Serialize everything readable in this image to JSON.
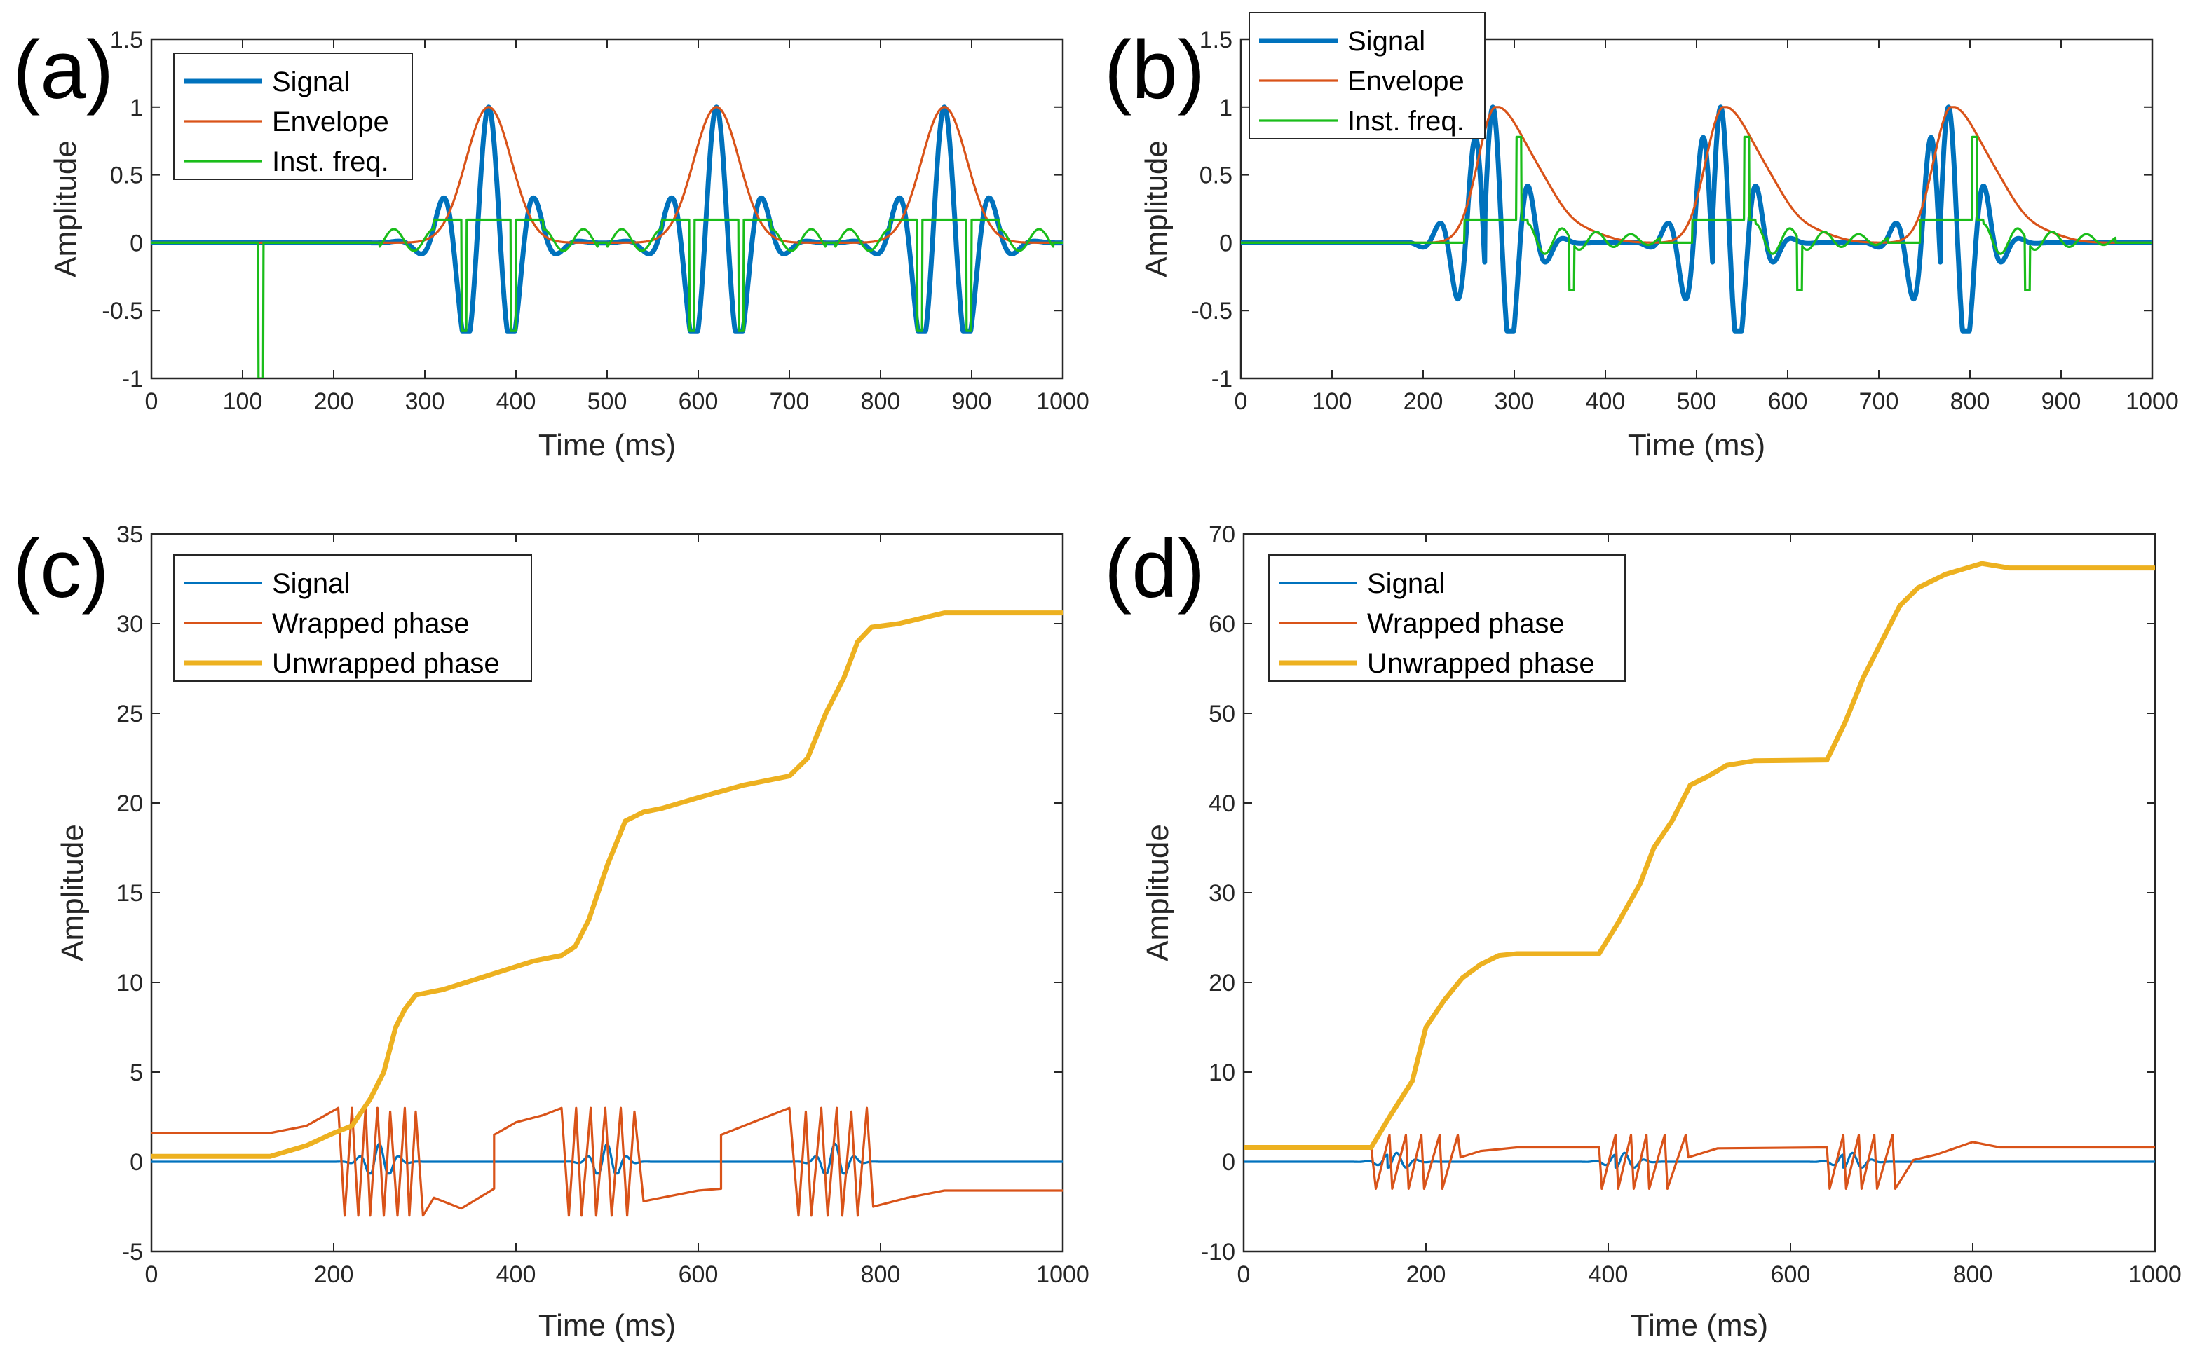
{
  "chart_data": [
    {
      "id": "a",
      "type": "line",
      "panel_label": "(a)",
      "xlabel": "Time (ms)",
      "ylabel": "Amplitude",
      "xlim": [
        0,
        1000
      ],
      "ylim": [
        -1,
        1.5
      ],
      "xticks": [
        0,
        100,
        200,
        300,
        400,
        500,
        600,
        700,
        800,
        900,
        1000
      ],
      "xtick_labels": [
        "0",
        "100",
        "200",
        "300",
        "400",
        "500",
        "600",
        "700",
        "800",
        "900",
        "1000"
      ],
      "yticks": [
        -1,
        -0.5,
        0,
        0.5,
        1,
        1.5
      ],
      "ytick_labels": [
        "-1",
        "-0.5",
        "0",
        "0.5",
        "1",
        "1.5"
      ],
      "legend_position": "top-left",
      "series": [
        {
          "name": "Signal",
          "color": "#0072BD",
          "emphasis": "thick",
          "model": {
            "kind": "wavelet",
            "centers": [
              370,
              620,
              870
            ],
            "cycles_ms": 52,
            "width_ms": 34,
            "sym": true
          }
        },
        {
          "name": "Envelope",
          "color": "#D95319",
          "emphasis": "thin",
          "model": {
            "kind": "envelope",
            "centers": [
              370,
              620,
              870
            ],
            "width_ms": 25,
            "sym": true
          }
        },
        {
          "name": "Inst. freq.",
          "color": "#1ABD1A",
          "emphasis": "thin",
          "model": {
            "kind": "instfreq",
            "centers": [
              370,
              620,
              870
            ],
            "sym": true,
            "spikes": [
              [
                120,
                -1.0
              ],
              [
                343,
                -0.65
              ],
              [
                397,
                -0.65
              ],
              [
                593,
                -0.65
              ],
              [
                647,
                -0.65
              ],
              [
                843,
                -0.65
              ],
              [
                897,
                -0.65
              ]
            ]
          }
        }
      ]
    },
    {
      "id": "b",
      "type": "line",
      "panel_label": "(b)",
      "xlabel": "Time (ms)",
      "ylabel": "Amplitude",
      "xlim": [
        0,
        1000
      ],
      "ylim": [
        -1,
        1.5
      ],
      "xticks": [
        0,
        100,
        200,
        300,
        400,
        500,
        600,
        700,
        800,
        900,
        1000
      ],
      "xtick_labels": [
        "0",
        "100",
        "200",
        "300",
        "400",
        "500",
        "600",
        "700",
        "800",
        "900",
        "1000"
      ],
      "yticks": [
        -1,
        -0.5,
        0,
        0.5,
        1,
        1.5
      ],
      "ytick_labels": [
        "-1",
        "-0.5",
        "0",
        "0.5",
        "1",
        "1.5"
      ],
      "legend_position": "top-left",
      "series": [
        {
          "name": "Signal",
          "color": "#0072BD",
          "emphasis": "thick",
          "model": {
            "kind": "wavelet",
            "centers": [
              280,
              530,
              780
            ],
            "cycles_ms": 40,
            "width_ms": 30,
            "sym": false
          }
        },
        {
          "name": "Envelope",
          "color": "#D95319",
          "emphasis": "thin",
          "model": {
            "kind": "envelope",
            "centers": [
              280,
              530,
              780
            ],
            "width_ms": 22,
            "sym": false
          }
        },
        {
          "name": "Inst. freq.",
          "color": "#1ABD1A",
          "emphasis": "thin",
          "model": {
            "kind": "instfreq",
            "centers": [
              280,
              530,
              780
            ],
            "sym": false,
            "spikes": [
              [
                305,
                0.78
              ],
              [
                363,
                -0.35
              ],
              [
                555,
                0.78
              ],
              [
                613,
                -0.35
              ],
              [
                805,
                0.78
              ],
              [
                863,
                -0.35
              ]
            ]
          }
        }
      ]
    },
    {
      "id": "c",
      "type": "line",
      "panel_label": "(c)",
      "xlabel": "Time (ms)",
      "ylabel": "Amplitude",
      "xlim": [
        0,
        1000
      ],
      "ylim": [
        -5,
        35
      ],
      "xticks": [
        0,
        200,
        400,
        600,
        800,
        1000
      ],
      "xtick_labels": [
        "0",
        "200",
        "400",
        "600",
        "800",
        "1000"
      ],
      "yticks": [
        -5,
        0,
        5,
        10,
        15,
        20,
        25,
        30,
        35
      ],
      "ytick_labels": [
        "-5",
        "0",
        "5",
        "10",
        "15",
        "20",
        "25",
        "30",
        "35"
      ],
      "legend_position": "top-left",
      "series": [
        {
          "name": "Signal",
          "color": "#0072BD",
          "emphasis": "thin",
          "model": {
            "kind": "wavelet",
            "centers": [
              250,
              500,
              750
            ],
            "cycles_ms": 22,
            "width_ms": 14,
            "sym": true
          }
        },
        {
          "name": "Wrapped phase",
          "color": "#D95319",
          "emphasis": "thin",
          "model": {
            "kind": "wrapped",
            "points": [
              [
                0,
                1.6
              ],
              [
                130,
                1.6
              ],
              [
                170,
                2.0
              ],
              [
                205,
                3.0
              ],
              [
                212,
                -3.0
              ],
              [
                220,
                3.0
              ],
              [
                227,
                -3.0
              ],
              [
                235,
                3.0
              ],
              [
                240,
                -3.0
              ],
              [
                248,
                3.0
              ],
              [
                255,
                -3.0
              ],
              [
                262,
                2.8
              ],
              [
                270,
                -3.0
              ],
              [
                278,
                3.0
              ],
              [
                283,
                -3.0
              ],
              [
                290,
                2.8
              ],
              [
                298,
                -3.0
              ],
              [
                310,
                -2.0
              ],
              [
                340,
                -2.6
              ],
              [
                376,
                -1.5
              ],
              [
                376,
                1.5
              ],
              [
                400,
                2.2
              ],
              [
                430,
                2.6
              ],
              [
                450,
                3.0
              ],
              [
                458,
                -3.0
              ],
              [
                466,
                3.0
              ],
              [
                472,
                -3.0
              ],
              [
                482,
                3.0
              ],
              [
                488,
                -3.0
              ],
              [
                498,
                3.0
              ],
              [
                505,
                -3.0
              ],
              [
                515,
                3.0
              ],
              [
                522,
                -3.0
              ],
              [
                530,
                2.8
              ],
              [
                540,
                -2.2
              ],
              [
                560,
                -2.0
              ],
              [
                600,
                -1.6
              ],
              [
                625,
                -1.5
              ],
              [
                625,
                1.5
              ],
              [
                650,
                2.0
              ],
              [
                690,
                2.8
              ],
              [
                700,
                3.0
              ],
              [
                710,
                -3.0
              ],
              [
                718,
                2.8
              ],
              [
                724,
                -3.0
              ],
              [
                735,
                3.0
              ],
              [
                742,
                -3.0
              ],
              [
                752,
                3.0
              ],
              [
                758,
                -3.0
              ],
              [
                768,
                2.8
              ],
              [
                775,
                -3.0
              ],
              [
                785,
                3.0
              ],
              [
                792,
                -2.5
              ],
              [
                830,
                -2.0
              ],
              [
                870,
                -1.6
              ],
              [
                1000,
                -1.6
              ]
            ]
          }
        },
        {
          "name": "Unwrapped phase",
          "color": "#EDB120",
          "emphasis": "thick",
          "model": {
            "kind": "polyline",
            "points": [
              [
                0,
                0.3
              ],
              [
                130,
                0.3
              ],
              [
                170,
                0.9
              ],
              [
                200,
                1.6
              ],
              [
                220,
                2.0
              ],
              [
                240,
                3.5
              ],
              [
                255,
                5.0
              ],
              [
                268,
                7.5
              ],
              [
                278,
                8.5
              ],
              [
                290,
                9.3
              ],
              [
                320,
                9.6
              ],
              [
                370,
                10.4
              ],
              [
                420,
                11.2
              ],
              [
                450,
                11.5
              ],
              [
                465,
                12.0
              ],
              [
                480,
                13.5
              ],
              [
                500,
                16.5
              ],
              [
                520,
                19.0
              ],
              [
                540,
                19.5
              ],
              [
                560,
                19.7
              ],
              [
                600,
                20.3
              ],
              [
                650,
                21.0
              ],
              [
                700,
                21.5
              ],
              [
                720,
                22.5
              ],
              [
                740,
                25.0
              ],
              [
                760,
                27.0
              ],
              [
                775,
                29.0
              ],
              [
                790,
                29.8
              ],
              [
                820,
                30.0
              ],
              [
                870,
                30.6
              ],
              [
                1000,
                30.6
              ]
            ]
          }
        }
      ]
    },
    {
      "id": "d",
      "type": "line",
      "panel_label": "(d)",
      "xlabel": "Time (ms)",
      "ylabel": "Amplitude",
      "xlim": [
        0,
        1000
      ],
      "ylim": [
        -10,
        70
      ],
      "xticks": [
        0,
        200,
        400,
        600,
        800,
        1000
      ],
      "xtick_labels": [
        "0",
        "200",
        "400",
        "600",
        "800",
        "1000"
      ],
      "yticks": [
        -10,
        0,
        10,
        20,
        30,
        40,
        50,
        60,
        70
      ],
      "ytick_labels": [
        "-10",
        "0",
        "10",
        "20",
        "30",
        "40",
        "50",
        "60",
        "70"
      ],
      "legend_position": "top-left",
      "series": [
        {
          "name": "Signal",
          "color": "#0072BD",
          "emphasis": "thin",
          "model": {
            "kind": "wavelet",
            "centers": [
              170,
              420,
              670
            ],
            "cycles_ms": 22,
            "width_ms": 14,
            "sym": false
          }
        },
        {
          "name": "Wrapped phase",
          "color": "#D95319",
          "emphasis": "thin",
          "model": {
            "kind": "wrapped",
            "points": [
              [
                0,
                1.6
              ],
              [
                140,
                1.6
              ],
              [
                145,
                -3.0
              ],
              [
                160,
                3.0
              ],
              [
                163,
                -3.0
              ],
              [
                178,
                3.0
              ],
              [
                181,
                -3.0
              ],
              [
                195,
                3.0
              ],
              [
                198,
                -3.0
              ],
              [
                215,
                3.0
              ],
              [
                218,
                -3.0
              ],
              [
                235,
                3.0
              ],
              [
                238,
                0.5
              ],
              [
                260,
                1.2
              ],
              [
                300,
                1.6
              ],
              [
                390,
                1.6
              ],
              [
                393,
                -3.0
              ],
              [
                408,
                3.0
              ],
              [
                411,
                -3.0
              ],
              [
                425,
                3.0
              ],
              [
                428,
                -3.0
              ],
              [
                442,
                3.0
              ],
              [
                445,
                -3.0
              ],
              [
                462,
                3.0
              ],
              [
                465,
                -3.0
              ],
              [
                485,
                3.0
              ],
              [
                488,
                0.5
              ],
              [
                520,
                1.5
              ],
              [
                640,
                1.6
              ],
              [
                643,
                -3.0
              ],
              [
                658,
                3.0
              ],
              [
                661,
                -3.0
              ],
              [
                675,
                3.0
              ],
              [
                678,
                -3.0
              ],
              [
                692,
                3.0
              ],
              [
                695,
                -3.0
              ],
              [
                712,
                3.0
              ],
              [
                715,
                -3.0
              ],
              [
                735,
                0.2
              ],
              [
                760,
                0.8
              ],
              [
                800,
                2.2
              ],
              [
                830,
                1.6
              ],
              [
                1000,
                1.6
              ]
            ]
          }
        },
        {
          "name": "Unwrapped phase",
          "color": "#EDB120",
          "emphasis": "thick",
          "model": {
            "kind": "polyline",
            "points": [
              [
                0,
                1.6
              ],
              [
                140,
                1.6
              ],
              [
                160,
                5.0
              ],
              [
                185,
                9.0
              ],
              [
                200,
                15.0
              ],
              [
                220,
                18.0
              ],
              [
                240,
                20.5
              ],
              [
                260,
                22.0
              ],
              [
                280,
                23.0
              ],
              [
                300,
                23.2
              ],
              [
                390,
                23.2
              ],
              [
                410,
                26.5
              ],
              [
                435,
                31.0
              ],
              [
                450,
                35.0
              ],
              [
                470,
                38.0
              ],
              [
                490,
                42.0
              ],
              [
                510,
                43.0
              ],
              [
                530,
                44.2
              ],
              [
                560,
                44.7
              ],
              [
                640,
                44.8
              ],
              [
                660,
                49.0
              ],
              [
                680,
                54.0
              ],
              [
                700,
                58.0
              ],
              [
                720,
                62.0
              ],
              [
                740,
                64.0
              ],
              [
                770,
                65.5
              ],
              [
                810,
                66.7
              ],
              [
                840,
                66.2
              ],
              [
                1000,
                66.2
              ]
            ]
          }
        }
      ]
    }
  ]
}
